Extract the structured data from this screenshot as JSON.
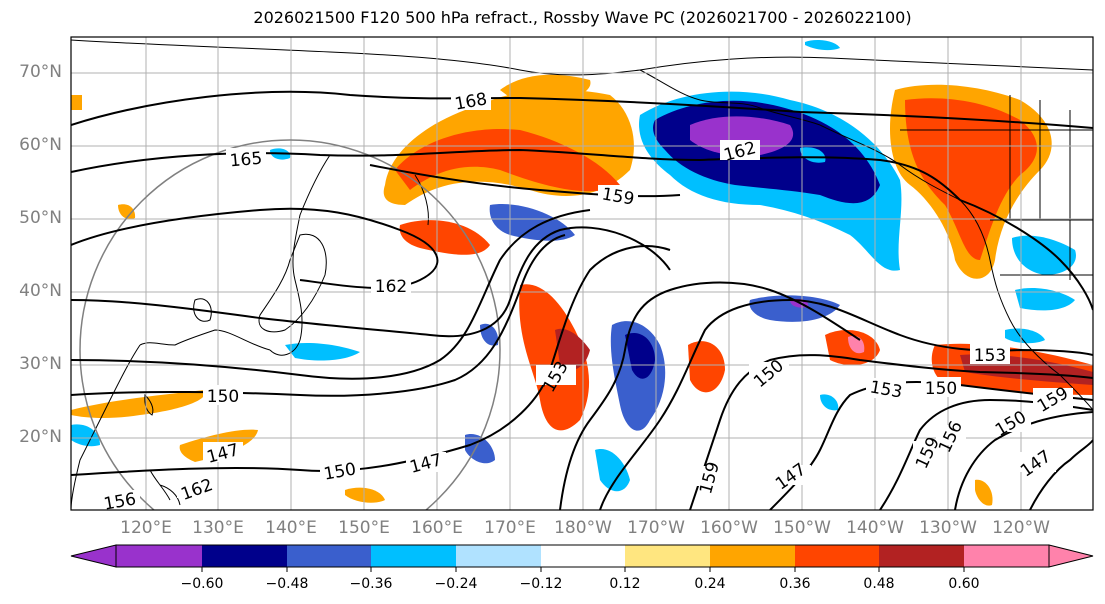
{
  "title": "2026021500 F120 500 hPa refract., Rossby Wave PC (2026021700 - 2026022100)",
  "lat_labels": [
    "70°N",
    "60°N",
    "50°N",
    "40°N",
    "30°N",
    "20°N"
  ],
  "lon_labels": [
    "120°E",
    "130°E",
    "140°E",
    "150°E",
    "160°E",
    "170°E",
    "180°W",
    "170°W",
    "160°W",
    "150°W",
    "140°W",
    "130°W",
    "120°W"
  ],
  "contour_labels": [
    "168",
    "165",
    "162",
    "159",
    "162",
    "150",
    "147",
    "153",
    "150",
    "147",
    "159",
    "147",
    "150",
    "153",
    "150",
    "153",
    "150",
    "147",
    "156",
    "159",
    "162",
    "156",
    "159",
    "150",
    "147",
    "153"
  ],
  "colorbar": {
    "ticks": [
      "−0.60",
      "−0.48",
      "−0.36",
      "−0.24",
      "−0.12",
      "0.12",
      "0.24",
      "0.36",
      "0.48",
      "0.60"
    ],
    "colors": [
      "#9932CC",
      "#00008B",
      "#3A5FCD",
      "#00BFFF",
      "#B0E2FF",
      "#FFFFFF",
      "#FFE680",
      "#FFA500",
      "#FF4500",
      "#B22222",
      "#FF82AB"
    ]
  }
}
